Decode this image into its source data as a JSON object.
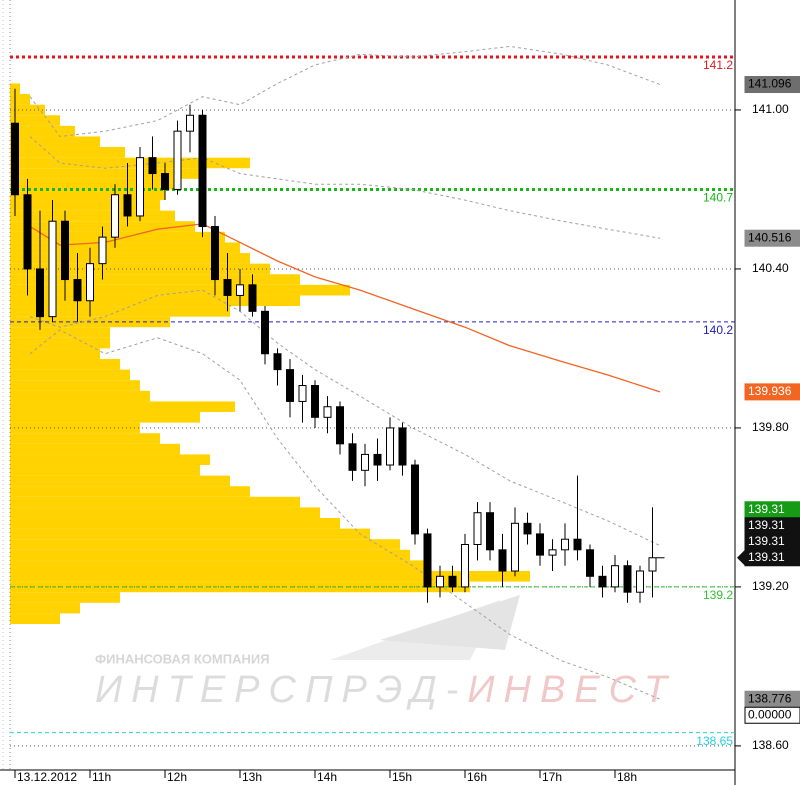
{
  "chart_data": {
    "type": "candlestick",
    "x": [
      10,
      10.1667,
      10.3333,
      10.5,
      10.6667,
      10.8333,
      11,
      11.1667,
      11.3333,
      11.5,
      11.6667,
      11.8333,
      12,
      12.1667,
      12.3333,
      12.5,
      12.6667,
      12.8333,
      13,
      13.1667,
      13.3333,
      13.5,
      13.6667,
      13.8333,
      14,
      14.1667,
      14.3333,
      14.5,
      14.6667,
      14.8333,
      15,
      15.1667,
      15.3333,
      15.5,
      15.6667,
      15.8333,
      16,
      16.1667,
      16.3333,
      16.5,
      16.6667,
      16.8333,
      17,
      17.1667,
      17.3333,
      17.5,
      17.6667,
      17.8333,
      18,
      18.1667,
      18.3333,
      18.5
    ],
    "open": [
      140.95,
      140.68,
      140.4,
      140.22,
      140.58,
      140.36,
      140.28,
      140.42,
      140.52,
      140.68,
      140.6,
      140.82,
      140.76,
      140.7,
      140.92,
      140.98,
      140.56,
      140.36,
      140.3,
      140.34,
      140.24,
      140.08,
      140.02,
      139.9,
      139.96,
      139.84,
      139.88,
      139.74,
      139.64,
      139.7,
      139.66,
      139.8,
      139.66,
      139.4,
      139.2,
      139.24,
      139.2,
      139.36,
      139.48,
      139.34,
      139.26,
      139.44,
      139.4,
      139.32,
      139.34,
      139.38,
      139.34,
      139.24,
      139.2,
      139.28,
      139.18,
      139.26
    ],
    "high": [
      141.08,
      140.74,
      140.62,
      140.66,
      140.62,
      140.46,
      140.48,
      140.56,
      140.72,
      140.8,
      140.86,
      140.9,
      140.8,
      140.96,
      141.02,
      141.0,
      140.6,
      140.46,
      140.4,
      140.38,
      140.26,
      140.1,
      140.06,
      140.0,
      139.98,
      139.92,
      139.9,
      139.78,
      139.74,
      139.76,
      139.84,
      139.82,
      139.68,
      139.42,
      139.28,
      139.28,
      139.4,
      139.52,
      139.52,
      139.4,
      139.5,
      139.48,
      139.44,
      139.38,
      139.44,
      139.62,
      139.36,
      139.28,
      139.32,
      139.3,
      139.28,
      139.5
    ],
    "low": [
      140.6,
      140.3,
      140.17,
      140.2,
      140.28,
      140.2,
      140.22,
      140.36,
      140.48,
      140.56,
      140.58,
      140.7,
      140.66,
      140.68,
      140.84,
      140.52,
      140.3,
      140.24,
      140.24,
      140.22,
      140.04,
      139.96,
      139.84,
      139.82,
      139.8,
      139.78,
      139.7,
      139.6,
      139.58,
      139.6,
      139.64,
      139.62,
      139.36,
      139.14,
      139.16,
      139.18,
      139.18,
      139.3,
      139.3,
      139.2,
      139.24,
      139.36,
      139.28,
      139.26,
      139.28,
      139.3,
      139.2,
      139.16,
      139.18,
      139.14,
      139.14,
      139.16
    ],
    "close": [
      140.68,
      140.4,
      140.22,
      140.58,
      140.36,
      140.28,
      140.42,
      140.52,
      140.68,
      140.6,
      140.82,
      140.76,
      140.7,
      140.92,
      140.98,
      140.56,
      140.36,
      140.3,
      140.34,
      140.24,
      140.08,
      140.02,
      139.9,
      139.96,
      139.84,
      139.88,
      139.74,
      139.64,
      139.7,
      139.66,
      139.8,
      139.66,
      139.4,
      139.2,
      139.24,
      139.2,
      139.36,
      139.48,
      139.34,
      139.26,
      139.44,
      139.4,
      139.32,
      139.34,
      139.38,
      139.34,
      139.24,
      139.2,
      139.28,
      139.18,
      139.26,
      139.31
    ],
    "lines": [
      {
        "color": "#a0a0a0",
        "style": "dashed",
        "label_color": "#6e6e6e",
        "x": [
          10.2,
          10.6,
          11.2,
          11.9,
          12.5,
          13.0,
          13.5,
          14.0,
          14.6,
          15.3,
          16.0,
          16.6,
          17.3,
          17.9,
          18.6
        ],
        "values": [
          141.05,
          140.9,
          140.92,
          140.96,
          141.05,
          141.02,
          141.1,
          141.17,
          141.21,
          141.2,
          141.22,
          141.24,
          141.21,
          141.17,
          141.096
        ]
      },
      {
        "color": "#a0a0a0",
        "style": "dashed",
        "label_color": "#8c8c8c",
        "x": [
          10.2,
          10.6,
          11.2,
          11.9,
          12.5,
          13.0,
          13.5,
          14.0,
          14.6,
          15.3,
          16.0,
          16.6,
          17.3,
          17.9,
          18.6
        ],
        "values": [
          140.9,
          140.8,
          140.78,
          140.8,
          140.82,
          140.76,
          140.74,
          140.72,
          140.72,
          140.7,
          140.66,
          140.62,
          140.58,
          140.55,
          140.516
        ]
      },
      {
        "color": "#f26522",
        "style": "solid",
        "label_color": "#f26522",
        "x": [
          10.2,
          10.6,
          11.2,
          11.9,
          12.5,
          13.0,
          13.5,
          14.0,
          14.6,
          15.3,
          16.0,
          16.6,
          17.3,
          17.9,
          18.6
        ],
        "values": [
          140.56,
          140.49,
          140.5,
          140.55,
          140.57,
          140.5,
          140.43,
          140.37,
          140.32,
          140.25,
          140.18,
          140.11,
          140.05,
          140.0,
          139.936
        ]
      },
      {
        "color": "#a0a0a0",
        "style": "dashed",
        "label_color": "#9a9a9a",
        "x": [
          10.2,
          10.6,
          11.2,
          11.9,
          12.5,
          13.0,
          13.5,
          14.0,
          14.6,
          15.3,
          16.0,
          16.6,
          17.3,
          17.9,
          18.6
        ],
        "values": [
          140.22,
          140.18,
          140.22,
          140.3,
          140.32,
          140.24,
          140.12,
          140.02,
          139.92,
          139.8,
          139.7,
          139.6,
          139.52,
          139.45,
          139.356
        ]
      },
      {
        "color": "#a0a0a0",
        "style": "dashed",
        "label_color": "#8c8c8c",
        "x": [
          10.2,
          10.6,
          11.2,
          11.9,
          12.5,
          13.0,
          13.5,
          14.0,
          14.6,
          15.3,
          16.0,
          16.6,
          17.3,
          17.9,
          18.6
        ],
        "values": [
          140.08,
          140.17,
          140.08,
          140.14,
          140.08,
          139.98,
          139.76,
          139.58,
          139.4,
          139.28,
          139.14,
          139.02,
          138.92,
          138.86,
          138.776
        ]
      }
    ],
    "levels": [
      {
        "value": 141.2,
        "color": "#e8161b"
      },
      {
        "value": 140.7,
        "color": "#17b817"
      },
      {
        "value": 140.2,
        "color": "#2020c0"
      },
      {
        "value": 139.2,
        "color": "#2ec42e"
      },
      {
        "value": 138.65,
        "color": "#27d0e0"
      }
    ],
    "profile": {
      "color": "#ffd200",
      "xlim": [
        0,
        725
      ],
      "prices": [
        141.08,
        141.04,
        141.0,
        140.96,
        140.92,
        140.88,
        140.84,
        140.8,
        140.76,
        140.72,
        140.68,
        140.64,
        140.6,
        140.56,
        140.52,
        140.48,
        140.44,
        140.4,
        140.36,
        140.32,
        140.28,
        140.24,
        140.2,
        140.16,
        140.12,
        140.08,
        140.04,
        140.0,
        139.96,
        139.92,
        139.88,
        139.84,
        139.8,
        139.76,
        139.72,
        139.68,
        139.64,
        139.6,
        139.56,
        139.52,
        139.48,
        139.44,
        139.4,
        139.36,
        139.32,
        139.28,
        139.24,
        139.2,
        139.16,
        139.12,
        139.08
      ],
      "volumes": [
        10,
        20,
        35,
        50,
        65,
        90,
        115,
        240,
        190,
        170,
        155,
        150,
        165,
        185,
        215,
        230,
        240,
        260,
        290,
        340,
        290,
        220,
        160,
        100,
        100,
        90,
        110,
        120,
        130,
        140,
        225,
        190,
        130,
        150,
        170,
        200,
        190,
        220,
        240,
        290,
        310,
        330,
        360,
        390,
        400,
        420,
        520,
        460,
        110,
        70,
        50
      ]
    },
    "last_labels": [
      {
        "value": 139.31,
        "color": "#169b16"
      },
      {
        "value": 139.31,
        "color": "#111111"
      },
      {
        "value": 139.31,
        "color": "#111111"
      },
      {
        "value": 139.31,
        "color": "#111111"
      }
    ],
    "extra_label": {
      "value": 0,
      "label": "0.00000"
    },
    "ylim": [
      138.509,
      141.415
    ],
    "yticks": [
      {
        "value": 141,
        "label": "141.00"
      },
      {
        "value": 140.4,
        "label": "140.40"
      },
      {
        "value": 139.8,
        "label": "139.80"
      },
      {
        "value": 139.2,
        "label": "139.20"
      },
      {
        "value": 138.6,
        "label": "138.60"
      }
    ],
    "xlim": [
      9.8,
      19.6
    ],
    "xticks": [
      {
        "value": 10,
        "label": "13.12.2012"
      },
      {
        "value": 11,
        "label": "11h"
      },
      {
        "value": 12,
        "label": "12h"
      },
      {
        "value": 13,
        "label": "13h"
      },
      {
        "value": 14,
        "label": "14h"
      },
      {
        "value": 15,
        "label": "15h"
      },
      {
        "value": 16,
        "label": "16h"
      },
      {
        "value": 17,
        "label": "17h"
      },
      {
        "value": 18,
        "label": "18h"
      }
    ],
    "grid": true,
    "watermark": {
      "subtitle": "ФИНАНСОВАЯ КОМПАНИЯ",
      "name": "ИНТЕРСПРЭД-",
      "name_accent": "ИНВЕСТ"
    }
  }
}
